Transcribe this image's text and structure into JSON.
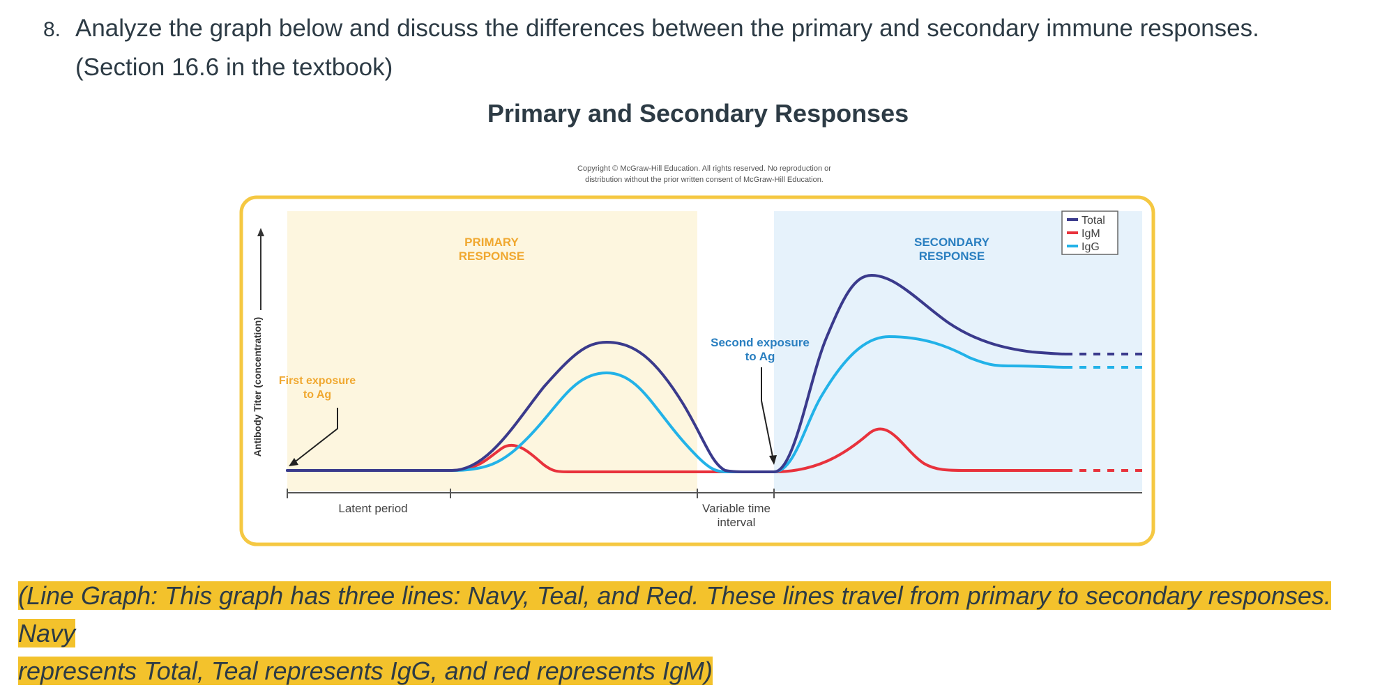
{
  "question": {
    "number": "8.",
    "line1": "Analyze the graph below and discuss the differences between the primary and secondary immune responses.",
    "line2": "(Section 16.6 in the textbook)"
  },
  "figure": {
    "title": "Primary and Secondary Responses",
    "copyright_line1": "Copyright © McGraw-Hill Education.  All rights reserved. No reproduction or",
    "copyright_line2": "distribution without the prior written consent of McGraw-Hill Education.",
    "y_axis_label": "Antibody Titer (concentration)",
    "primary_label_1": "PRIMARY",
    "primary_label_2": "RESPONSE",
    "secondary_label_1": "SECONDARY",
    "secondary_label_2": "RESPONSE",
    "first_exposure_1": "First exposure",
    "first_exposure_2": "to Ag",
    "second_exposure_1": "Second exposure",
    "second_exposure_2": "to Ag",
    "latent_period": "Latent period",
    "variable_interval_1": "Variable time",
    "variable_interval_2": "interval",
    "legend": [
      {
        "name": "Total",
        "color": "#3a3a8c"
      },
      {
        "name": "IgM",
        "color": "#e8323c"
      },
      {
        "name": "IgG",
        "color": "#22b2e8"
      }
    ],
    "colors": {
      "frame": "#f5c842",
      "primary_bg": "#fdf6df",
      "secondary_bg": "#e6f2fb",
      "primary_text": "#f0a830",
      "secondary_text": "#2a7fc0",
      "first_exposure_text": "#f0a830",
      "second_exposure_text": "#2a7fc0"
    }
  },
  "caption": {
    "line1": "(Line Graph: This graph has three lines: Navy, Teal, and Red. These lines travel from primary to secondary responses. Navy",
    "line2": "represents Total, Teal represents IgG, and red represents IgM)"
  }
}
